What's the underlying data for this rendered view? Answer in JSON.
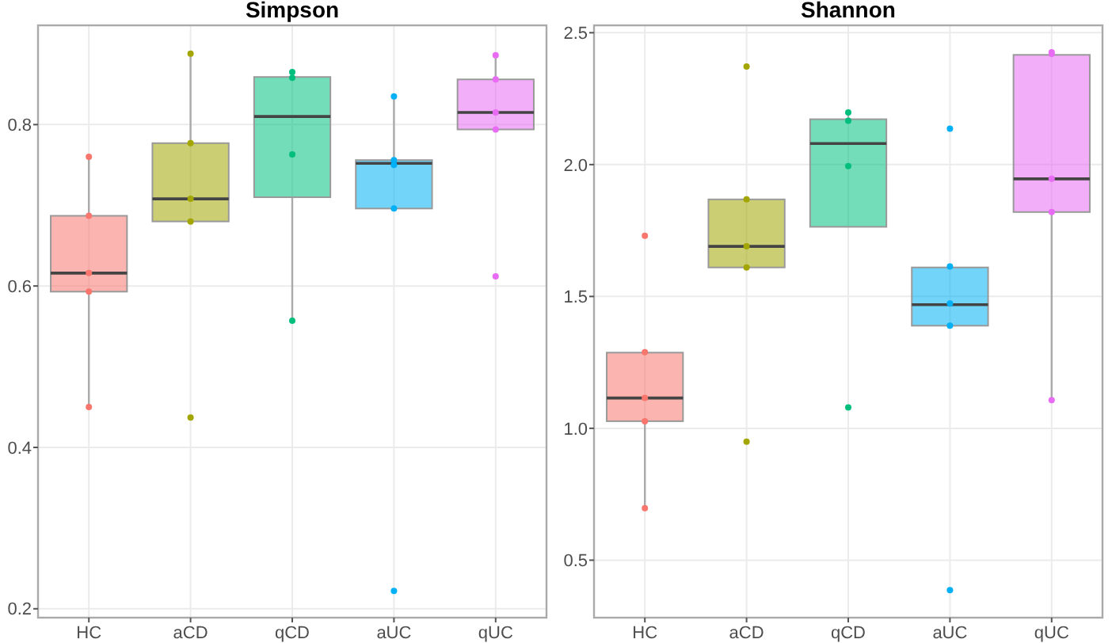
{
  "chart_data": [
    {
      "type": "box",
      "title": "Simpson",
      "categories": [
        "HC",
        "aCD",
        "qCD",
        "aUC",
        "qUC"
      ],
      "colors": [
        "#f8766d",
        "#a3a500",
        "#00bf7d",
        "#00b0f6",
        "#e76bf3"
      ],
      "boxes": [
        {
          "low": 0.452,
          "q1": 0.593,
          "median": 0.616,
          "q3": 0.687,
          "high": 0.761
        },
        {
          "low": 0.68,
          "q1": 0.68,
          "median": 0.708,
          "q3": 0.777,
          "high": 0.888
        },
        {
          "low": 0.557,
          "q1": 0.71,
          "median": 0.81,
          "q3": 0.859,
          "high": 0.865
        },
        {
          "low": 0.696,
          "q1": 0.696,
          "median": 0.752,
          "q3": 0.756,
          "high": 0.835
        },
        {
          "low": 0.794,
          "q1": 0.794,
          "median": 0.815,
          "q3": 0.856,
          "high": 0.886
        }
      ],
      "series": [
        {
          "type": "scatter",
          "x": [
            "HC",
            "HC",
            "HC",
            "HC",
            "HC",
            "aCD",
            "aCD",
            "aCD",
            "aCD",
            "aCD",
            "qCD",
            "qCD",
            "qCD",
            "qCD",
            "aUC",
            "aUC",
            "aUC",
            "aUC",
            "aUC",
            "qUC",
            "qUC",
            "qUC",
            "qUC",
            "qUC"
          ],
          "values": [
            0.76,
            0.687,
            0.616,
            0.593,
            0.45,
            0.888,
            0.777,
            0.708,
            0.68,
            0.437,
            0.865,
            0.858,
            0.763,
            0.557,
            0.835,
            0.756,
            0.75,
            0.696,
            0.222,
            0.886,
            0.856,
            0.815,
            0.794,
            0.612
          ],
          "colors": [
            "#f8766d",
            "#f8766d",
            "#f8766d",
            "#f8766d",
            "#f8766d",
            "#a3a500",
            "#a3a500",
            "#a3a500",
            "#a3a500",
            "#a3a500",
            "#00bf7d",
            "#00bf7d",
            "#00bf7d",
            "#00bf7d",
            "#00b0f6",
            "#00b0f6",
            "#00b0f6",
            "#00b0f6",
            "#00b0f6",
            "#e76bf3",
            "#e76bf3",
            "#e76bf3",
            "#e76bf3",
            "#e76bf3"
          ]
        }
      ],
      "ylim": [
        0.189,
        0.923
      ],
      "yticks": [
        0.2,
        0.4,
        0.6,
        0.8
      ],
      "grid": true,
      "marker": "circle"
    },
    {
      "type": "box",
      "title": "Shannon",
      "categories": [
        "HC",
        "aCD",
        "qCD",
        "aUC",
        "qUC"
      ],
      "colors": [
        "#f8766d",
        "#a3a500",
        "#00bf7d",
        "#00b0f6",
        "#e76bf3"
      ],
      "boxes": [
        {
          "low": 0.697,
          "q1": 1.027,
          "median": 1.115,
          "q3": 1.287,
          "high": 1.287
        },
        {
          "low": 1.61,
          "q1": 1.61,
          "median": 1.69,
          "q3": 1.868,
          "high": 1.868
        },
        {
          "low": 1.764,
          "q1": 1.764,
          "median": 2.08,
          "q3": 2.172,
          "high": 2.198
        },
        {
          "low": 1.389,
          "q1": 1.389,
          "median": 1.469,
          "q3": 1.61,
          "high": 1.61
        },
        {
          "low": 1.109,
          "q1": 1.82,
          "median": 1.946,
          "q3": 2.416,
          "high": 2.416
        }
      ],
      "series": [
        {
          "type": "scatter",
          "x": [
            "HC",
            "HC",
            "HC",
            "HC",
            "HC",
            "aCD",
            "aCD",
            "aCD",
            "aCD",
            "aCD",
            "qCD",
            "qCD",
            "qCD",
            "qCD",
            "aUC",
            "aUC",
            "aUC",
            "aUC",
            "aUC",
            "qUC",
            "qUC",
            "qUC",
            "qUC",
            "qUC"
          ],
          "values": [
            1.73,
            1.289,
            1.115,
            1.027,
            0.697,
            2.372,
            1.868,
            1.69,
            1.61,
            0.949,
            2.198,
            2.166,
            1.994,
            1.079,
            2.136,
            1.614,
            1.473,
            1.389,
            0.386,
            2.426,
            2.42,
            1.946,
            1.82,
            1.107
          ],
          "colors": [
            "#f8766d",
            "#f8766d",
            "#f8766d",
            "#f8766d",
            "#f8766d",
            "#a3a500",
            "#a3a500",
            "#a3a500",
            "#a3a500",
            "#a3a500",
            "#00bf7d",
            "#00bf7d",
            "#00bf7d",
            "#00bf7d",
            "#00b0f6",
            "#00b0f6",
            "#00b0f6",
            "#00b0f6",
            "#00b0f6",
            "#e76bf3",
            "#e76bf3",
            "#e76bf3",
            "#e76bf3",
            "#e76bf3"
          ]
        }
      ],
      "ylim": [
        0.282,
        2.528
      ],
      "yticks": [
        {
          "value": 0.5,
          "label": "0.5"
        },
        {
          "value": 1,
          "label": "1.0"
        },
        {
          "value": 1.5,
          "label": "1.5"
        },
        {
          "value": 2,
          "label": "2.0"
        },
        {
          "value": 2.5,
          "label": "2.5"
        }
      ],
      "grid": true,
      "marker": "circle"
    }
  ]
}
